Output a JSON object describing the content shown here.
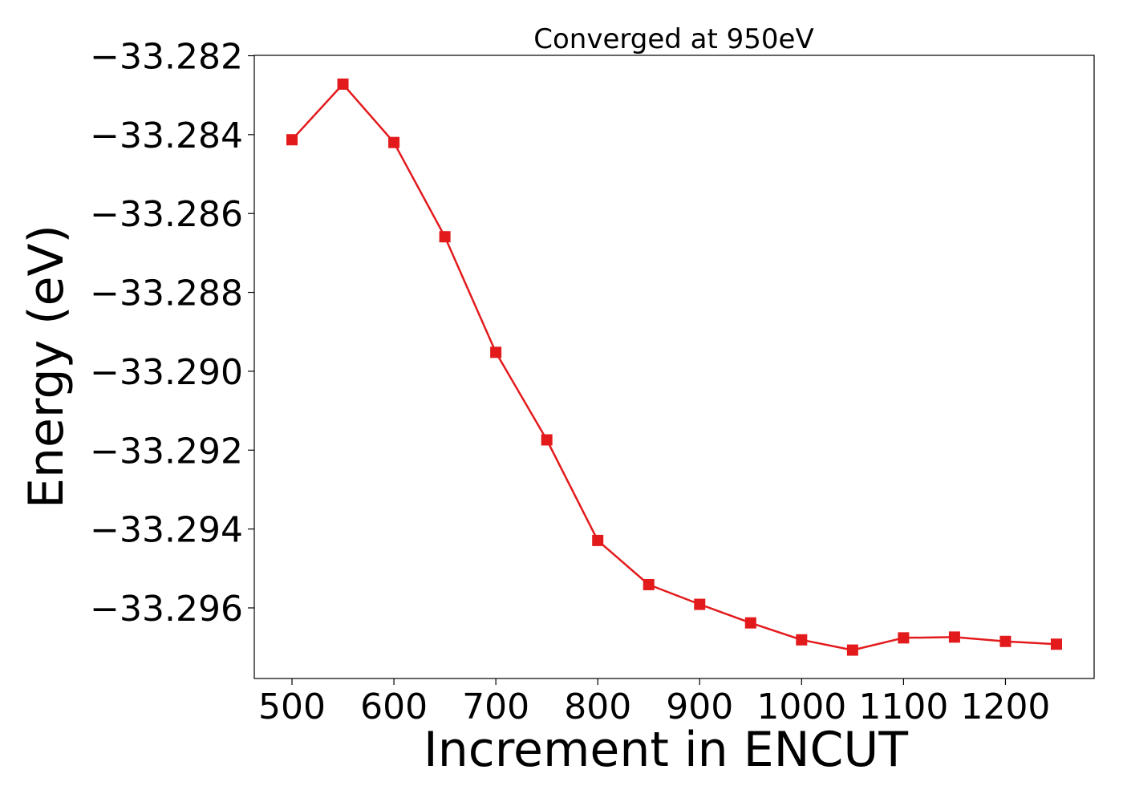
{
  "chart_data": {
    "type": "line",
    "title": "Converged at 950eV",
    "xlabel": "Increment in ENCUT",
    "ylabel": "Energy (eV)",
    "x": [
      500,
      550,
      600,
      650,
      700,
      750,
      800,
      850,
      900,
      950,
      1000,
      1050,
      1100,
      1150,
      1200,
      1250
    ],
    "series": [
      {
        "values": [
          -33.28413,
          -33.28272,
          -33.2842,
          -33.28659,
          -33.28952,
          -33.29174,
          -33.29429,
          -33.29541,
          -33.29591,
          -33.29638,
          -33.29681,
          -33.29707,
          -33.29676,
          -33.29674,
          -33.29685,
          -33.29692
        ],
        "color": "#e31a1c",
        "marker": "square"
      }
    ],
    "xlim": [
      463,
      1287
    ],
    "ylim": [
      -33.29779,
      -33.28199
    ],
    "xticks": [
      500,
      600,
      700,
      800,
      900,
      1000,
      1100,
      1200
    ],
    "xtick_labels": [
      "500",
      "600",
      "700",
      "800",
      "900",
      "1000",
      "1100",
      "1200"
    ],
    "yticks": [
      -33.282,
      -33.284,
      -33.286,
      -33.288,
      -33.29,
      -33.292,
      -33.294,
      -33.296
    ],
    "ytick_labels": [
      "−33.282",
      "−33.284",
      "−33.286",
      "−33.288",
      "−33.290",
      "−33.292",
      "−33.294",
      "−33.296"
    ],
    "grid": false,
    "legend": "none"
  }
}
